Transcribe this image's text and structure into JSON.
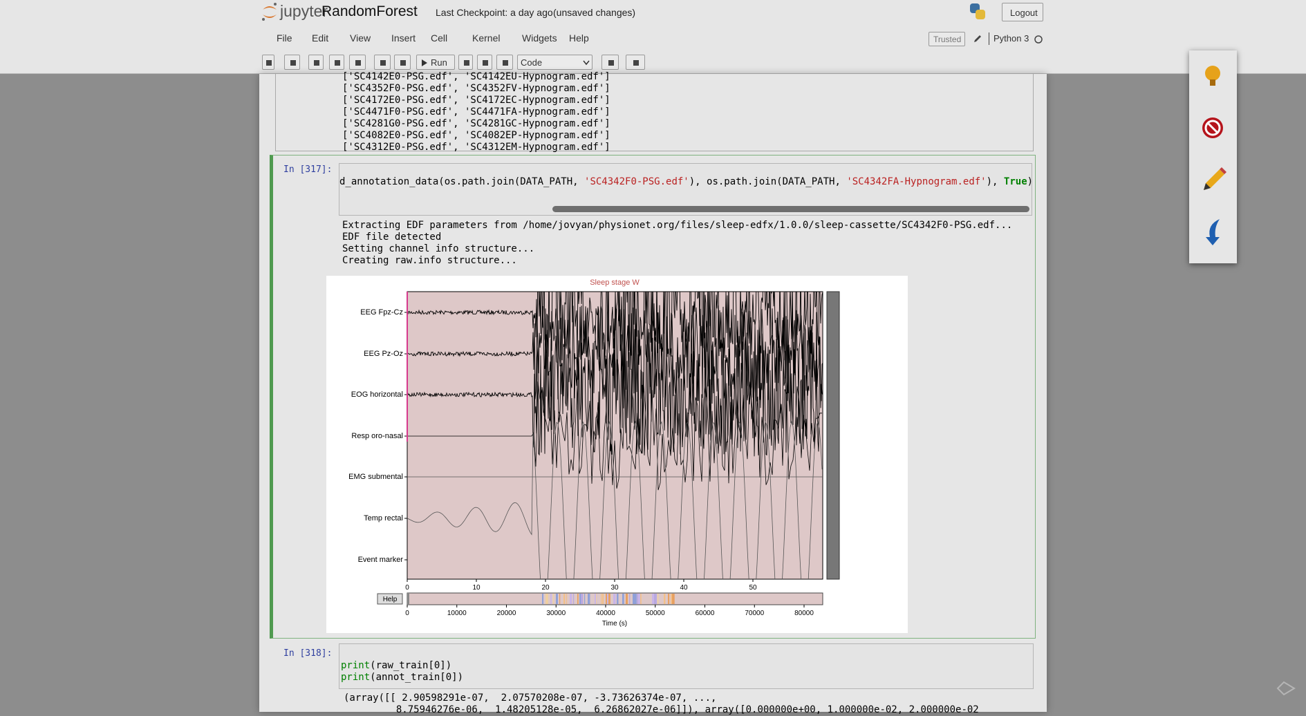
{
  "header": {
    "logo": "jupyter",
    "notebook_name": "RandomForest",
    "checkpoint": "Last Checkpoint: a day ago",
    "unsaved": "(unsaved changes)",
    "logout": "Logout"
  },
  "menu": {
    "items": [
      "File",
      "Edit",
      "View",
      "Insert",
      "Cell",
      "Kernel",
      "Widgets",
      "Help"
    ],
    "trusted": "Trusted",
    "kernel": "Python 3"
  },
  "toolbar": {
    "run": "Run",
    "cell_type": "Code"
  },
  "cells": [
    {
      "output": [
        "['SC4142E0-PSG.edf', 'SC4142EU-Hypnogram.edf']",
        "['SC4352F0-PSG.edf', 'SC4352FV-Hypnogram.edf']",
        "['SC4172E0-PSG.edf', 'SC4172EC-Hypnogram.edf']",
        "['SC4471F0-PSG.edf', 'SC4471FA-Hypnogram.edf']",
        "['SC4281G0-PSG.edf', 'SC4281GC-Hypnogram.edf']",
        "['SC4082E0-PSG.edf', 'SC4082EP-Hypnogram.edf']",
        "['SC4312E0-PSG.edf', 'SC4312EM-Hypnogram.edf']"
      ]
    },
    {
      "prompt": "In [317]:",
      "code": [
        "d_annotation_data(os.path.join(DATA_PATH, ",
        "'SC4342F0-PSG.edf'",
        "), os.path.join(DATA_PATH, ",
        "'SC4342FA-Hypnogram.edf'",
        "), ",
        "True",
        ")"
      ],
      "output": [
        "Extracting EDF parameters from /home/jovyan/physionet.org/files/sleep-edfx/1.0.0/sleep-cassette/SC4342F0-PSG.edf...",
        "EDF file detected",
        "Setting channel info structure...",
        "Creating raw.info structure..."
      ],
      "plot": {
        "title": "Sleep stage W",
        "channels": [
          "EEG Fpz-Cz",
          "EEG Pz-Oz",
          "EOG horizontal",
          "Resp oro-nasal",
          "EMG submental",
          "Temp rectal",
          "Event marker"
        ],
        "x_ticks": [
          "0",
          "10",
          "20",
          "30",
          "40",
          "50"
        ],
        "overview_ticks": [
          "0",
          "10000",
          "20000",
          "30000",
          "40000",
          "50000",
          "60000",
          "70000",
          "80000"
        ],
        "help": "Help",
        "xlabel": "Time (s)"
      }
    },
    {
      "prompt": "In [318]:",
      "code": [
        [
          "print",
          "(raw_train[0])"
        ],
        [
          "print",
          "(annot_train[0])"
        ]
      ],
      "output": [
        "(array([[ 2.90598291e-07,  2.07570208e-07, -3.73626374e-07, ...,",
        "         8.75946276e-06,  1.48205128e-05,  6.26862027e-06]]), array([0.000000e+00, 1.000000e-02, 2.000000e-02"
      ]
    }
  ]
}
